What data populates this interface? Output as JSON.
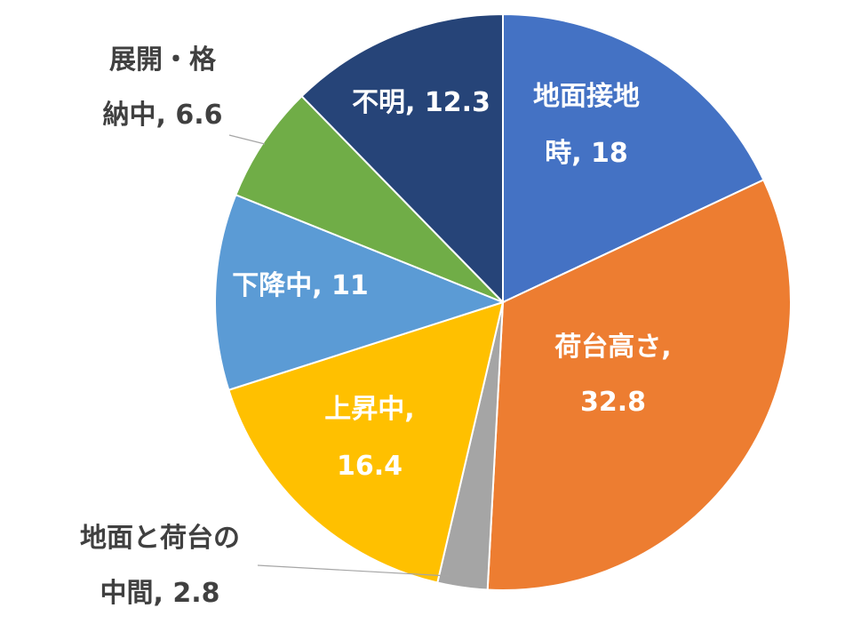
{
  "chart_data": {
    "type": "pie",
    "title": "",
    "start": "12 o'clock, clockwise",
    "slices": [
      {
        "category": "地面接地時",
        "value": 18,
        "label_lines": [
          "地面接地",
          "時, 18"
        ],
        "color": "#4472C4",
        "label_position": "inside"
      },
      {
        "category": "荷台高さ",
        "value": 32.8,
        "label_lines": [
          "荷台高さ,",
          "32.8"
        ],
        "color": "#ED7D31",
        "label_position": "inside"
      },
      {
        "category": "地面と荷台の中間",
        "value": 2.8,
        "label_lines": [
          "地面と荷台の",
          "中間, 2.8"
        ],
        "color": "#A5A5A5",
        "label_position": "outside"
      },
      {
        "category": "上昇中",
        "value": 16.4,
        "label_lines": [
          "上昇中,",
          "16.4"
        ],
        "color": "#FFC000",
        "label_position": "inside"
      },
      {
        "category": "下降中",
        "value": 11,
        "label_lines": [
          "下降中, 11"
        ],
        "color": "#5B9BD5",
        "label_position": "inside"
      },
      {
        "category": "展開・格納中",
        "value": 6.6,
        "label_lines": [
          "展開・格",
          "納中, 6.6"
        ],
        "color": "#70AD47",
        "label_position": "outside"
      },
      {
        "category": "不明",
        "value": 12.3,
        "label_lines": [
          "不明, 12.3"
        ],
        "color": "#264478",
        "label_position": "inside"
      }
    ],
    "legend": "none"
  }
}
